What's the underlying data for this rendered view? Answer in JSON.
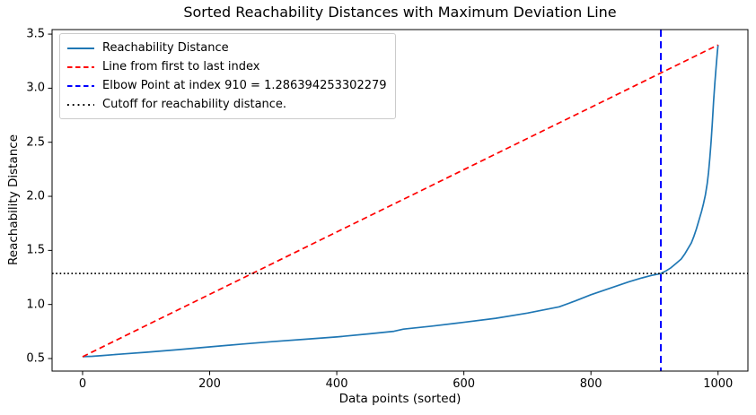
{
  "chart_data": {
    "type": "line",
    "title": "Sorted Reachability Distances with Maximum Deviation Line",
    "xlabel": "Data points (sorted)",
    "ylabel": "Reachability Distance",
    "xlim": [
      -48,
      1047
    ],
    "ylim": [
      0.384,
      3.542
    ],
    "x_tick_values": [
      0,
      200,
      400,
      600,
      800,
      1000
    ],
    "x_tick_labels": [
      "0",
      "200",
      "400",
      "600",
      "800",
      "1000"
    ],
    "y_tick_values": [
      0.5,
      1.0,
      1.5,
      2.0,
      2.5,
      3.0,
      3.5
    ],
    "y_tick_labels": [
      "0.5",
      "1.0",
      "1.5",
      "2.0",
      "2.5",
      "3.0",
      "3.5"
    ],
    "grid": false,
    "legend_position": "upper left",
    "elbow_index": 910,
    "elbow_value": 1.286394253302279,
    "cutoff_value": 1.286394253302279,
    "series": [
      {
        "name": "Reachability Distance",
        "color": "#1f77b4",
        "style": "solid",
        "points": [
          [
            0,
            0.517
          ],
          [
            15,
            0.521
          ],
          [
            30,
            0.527
          ],
          [
            60,
            0.541
          ],
          [
            100,
            0.558
          ],
          [
            150,
            0.582
          ],
          [
            200,
            0.608
          ],
          [
            250,
            0.633
          ],
          [
            300,
            0.657
          ],
          [
            350,
            0.678
          ],
          [
            400,
            0.7
          ],
          [
            450,
            0.728
          ],
          [
            490,
            0.752
          ],
          [
            505,
            0.772
          ],
          [
            550,
            0.8
          ],
          [
            600,
            0.835
          ],
          [
            650,
            0.872
          ],
          [
            700,
            0.92
          ],
          [
            750,
            0.978
          ],
          [
            775,
            1.032
          ],
          [
            800,
            1.09
          ],
          [
            830,
            1.15
          ],
          [
            860,
            1.21
          ],
          [
            880,
            1.245
          ],
          [
            895,
            1.268
          ],
          [
            910,
            1.286
          ],
          [
            918,
            1.31
          ],
          [
            926,
            1.34
          ],
          [
            934,
            1.38
          ],
          [
            942,
            1.42
          ],
          [
            948,
            1.47
          ],
          [
            953,
            1.52
          ],
          [
            958,
            1.57
          ],
          [
            962,
            1.63
          ],
          [
            966,
            1.7
          ],
          [
            970,
            1.78
          ],
          [
            974,
            1.86
          ],
          [
            977,
            1.93
          ],
          [
            980,
            2.01
          ],
          [
            983,
            2.12
          ],
          [
            985,
            2.22
          ],
          [
            987,
            2.35
          ],
          [
            989,
            2.5
          ],
          [
            991,
            2.68
          ],
          [
            993,
            2.88
          ],
          [
            995,
            3.05
          ],
          [
            997,
            3.2
          ],
          [
            998,
            3.27
          ],
          [
            999,
            3.34
          ],
          [
            1000,
            3.4
          ]
        ]
      },
      {
        "name": "Line from first to last index",
        "color": "#ff0000",
        "style": "dashed",
        "points": [
          [
            0,
            0.517
          ],
          [
            1000,
            3.4
          ]
        ]
      },
      {
        "name": "Elbow Point at index 910 = 1.286394253302279",
        "color": "#0000ff",
        "style": "dashed",
        "orientation": "vertical",
        "x": 910
      },
      {
        "name": "Cutoff for reachability distance.",
        "color": "#000000",
        "style": "dotted",
        "orientation": "horizontal",
        "y": 1.286394253302279
      }
    ],
    "legend": [
      {
        "label": "Reachability Distance",
        "color": "#1f77b4",
        "style": "solid"
      },
      {
        "label": "Line from first to last index",
        "color": "#ff0000",
        "style": "dashed"
      },
      {
        "label": "Elbow Point at index 910 = 1.286394253302279",
        "color": "#0000ff",
        "style": "dashed"
      },
      {
        "label": "Cutoff for reachability distance.",
        "color": "#000000",
        "style": "dotted"
      }
    ]
  }
}
